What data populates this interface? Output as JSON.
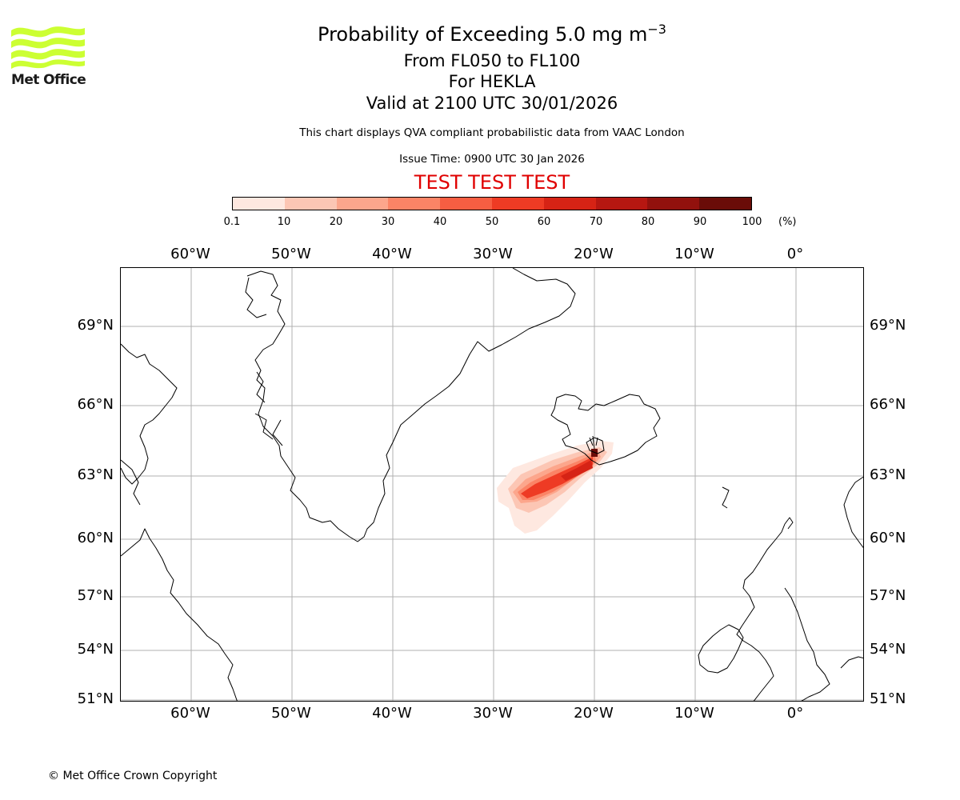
{
  "header": {
    "title_prefix": "Probability of Exceeding 5.0 mg m",
    "title_exponent": "−3",
    "levels": "From FL050 to FL100",
    "volcano": "For HEKLA",
    "valid": "Valid at 2100 UTC 30/01/2026",
    "disclaimer": "This chart displays QVA compliant probabilistic data from VAAC London",
    "issue_time": "Issue Time: 0900 UTC 30 Jan 2026",
    "test_banner": "TEST TEST TEST"
  },
  "logo": {
    "text": "Met Office",
    "color": "#ccff33"
  },
  "colorbar": {
    "ticks": [
      "0.1",
      "10",
      "20",
      "30",
      "40",
      "50",
      "60",
      "70",
      "80",
      "90",
      "100"
    ],
    "unit": "(%)",
    "colors": [
      "#fee8e0",
      "#fcc6b4",
      "#fca68c",
      "#fb8466",
      "#f75e42",
      "#ee3b24",
      "#d62315",
      "#b61711",
      "#92110d",
      "#6a0c08"
    ]
  },
  "map": {
    "lon_labels": [
      "60°W",
      "50°W",
      "40°W",
      "30°W",
      "20°W",
      "10°W",
      "0°"
    ],
    "lat_labels": [
      "69°N",
      "66°N",
      "63°N",
      "60°N",
      "57°N",
      "54°N",
      "51°N"
    ],
    "volcano_marker": "volcano-icon"
  },
  "footer": {
    "copyright": "© Met Office Crown Copyright"
  }
}
